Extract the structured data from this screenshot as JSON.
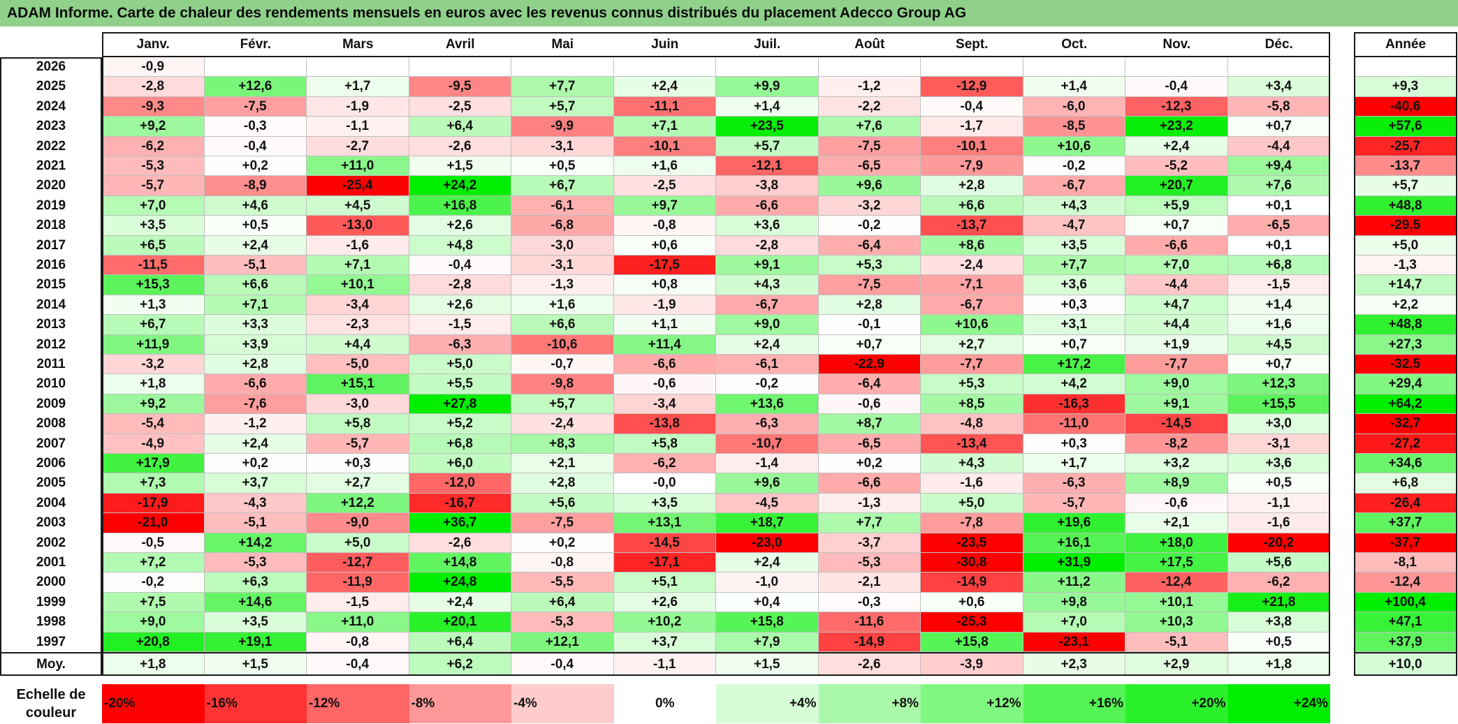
{
  "title": "ADAM Informe. Carte de chaleur des rendements mensuels en euros avec les revenus connus distribués du placement Adecco Group AG",
  "chart_data": {
    "type": "heatmap",
    "months": [
      "Janv.",
      "Févr.",
      "Mars",
      "Avril",
      "Mai",
      "Juin",
      "Juil.",
      "Août",
      "Sept.",
      "Oct.",
      "Nov.",
      "Déc."
    ],
    "annual_header": "Année",
    "years": [
      "2026",
      "2025",
      "2024",
      "2023",
      "2022",
      "2021",
      "2020",
      "2019",
      "2018",
      "2017",
      "2016",
      "2015",
      "2014",
      "2013",
      "2012",
      "2011",
      "2010",
      "2009",
      "2008",
      "2007",
      "2006",
      "2005",
      "2004",
      "2003",
      "2002",
      "2001",
      "2000",
      "1999",
      "1998",
      "1997"
    ],
    "values": [
      [
        "-0,9",
        "",
        "",
        "",
        "",
        "",
        "",
        "",
        "",
        "",
        "",
        ""
      ],
      [
        "-2,8",
        "+12,6",
        "+1,7",
        "-9,5",
        "+7,7",
        "+2,4",
        "+9,9",
        "-1,2",
        "-12,9",
        "+1,4",
        "-0,4",
        "+3,4"
      ],
      [
        "-9,3",
        "-7,5",
        "-1,9",
        "-2,5",
        "+5,7",
        "-11,1",
        "+1,4",
        "-2,2",
        "-0,4",
        "-6,0",
        "-12,3",
        "-5,8"
      ],
      [
        "+9,2",
        "-0,3",
        "-1,1",
        "+6,4",
        "-9,9",
        "+7,1",
        "+23,5",
        "+7,6",
        "-1,7",
        "-8,5",
        "+23,2",
        "+0,7"
      ],
      [
        "-6,2",
        "-0,4",
        "-2,7",
        "-2,6",
        "-3,1",
        "-10,1",
        "+5,7",
        "-7,5",
        "-10,1",
        "+10,6",
        "+2,4",
        "-4,4"
      ],
      [
        "-5,3",
        "+0,2",
        "+11,0",
        "+1,5",
        "+0,5",
        "+1,6",
        "-12,1",
        "-6,5",
        "-7,9",
        "-0,2",
        "-5,2",
        "+9,4"
      ],
      [
        "-5,7",
        "-8,9",
        "-25,4",
        "+24,2",
        "+6,7",
        "-2,5",
        "-3,8",
        "+9,6",
        "+2,8",
        "-6,7",
        "+20,7",
        "+7,6"
      ],
      [
        "+7,0",
        "+4,6",
        "+4,5",
        "+16,8",
        "-6,1",
        "+9,7",
        "-6,6",
        "-3,2",
        "+6,6",
        "+4,3",
        "+5,9",
        "+0,1"
      ],
      [
        "+3,5",
        "+0,5",
        "-13,0",
        "+2,6",
        "-6,8",
        "-0,8",
        "+3,6",
        "-0,2",
        "-13,7",
        "-4,7",
        "+0,7",
        "-6,5"
      ],
      [
        "+6,5",
        "+2,4",
        "-1,6",
        "+4,8",
        "-3,0",
        "+0,6",
        "-2,8",
        "-6,4",
        "+8,6",
        "+3,5",
        "-6,6",
        "+0,1"
      ],
      [
        "-11,5",
        "-5,1",
        "+7,1",
        "-0,4",
        "-3,1",
        "-17,5",
        "+9,1",
        "+5,3",
        "-2,4",
        "+7,7",
        "+7,0",
        "+6,8"
      ],
      [
        "+15,3",
        "+6,6",
        "+10,1",
        "-2,8",
        "-1,3",
        "+0,8",
        "+4,3",
        "-7,5",
        "-7,1",
        "+3,6",
        "-4,4",
        "-1,5"
      ],
      [
        "+1,3",
        "+7,1",
        "-3,4",
        "+2,6",
        "+1,6",
        "-1,9",
        "-6,7",
        "+2,8",
        "-6,7",
        "+0,3",
        "+4,7",
        "+1,4"
      ],
      [
        "+6,7",
        "+3,3",
        "-2,3",
        "-1,5",
        "+6,6",
        "+1,1",
        "+9,0",
        "-0,1",
        "+10,6",
        "+3,1",
        "+4,4",
        "+1,6"
      ],
      [
        "+11,9",
        "+3,9",
        "+4,4",
        "-6,3",
        "-10,6",
        "+11,4",
        "+2,4",
        "+0,7",
        "+2,7",
        "+0,7",
        "+1,9",
        "+4,5"
      ],
      [
        "-3,2",
        "+2,8",
        "-5,0",
        "+5,0",
        "-0,7",
        "-6,6",
        "-6,1",
        "-22,9",
        "-7,7",
        "+17,2",
        "-7,7",
        "+0,7"
      ],
      [
        "+1,8",
        "-6,6",
        "+15,1",
        "+5,5",
        "-9,8",
        "-0,6",
        "-0,2",
        "-6,4",
        "+5,3",
        "+4,2",
        "+9,0",
        "+12,3"
      ],
      [
        "+9,2",
        "-7,6",
        "-3,0",
        "+27,8",
        "+5,7",
        "-3,4",
        "+13,6",
        "-0,6",
        "+8,5",
        "-16,3",
        "+9,1",
        "+15,5"
      ],
      [
        "-5,4",
        "-1,2",
        "+5,8",
        "+5,2",
        "-2,4",
        "-13,8",
        "-6,3",
        "+8,7",
        "-4,8",
        "-11,0",
        "-14,5",
        "+3,0"
      ],
      [
        "-4,9",
        "+2,4",
        "-5,7",
        "+6,8",
        "+8,3",
        "+5,8",
        "-10,7",
        "-6,5",
        "-13,4",
        "+0,3",
        "-8,2",
        "-3,1"
      ],
      [
        "+17,9",
        "+0,2",
        "+0,3",
        "+6,0",
        "+2,1",
        "-6,2",
        "-1,4",
        "+0,2",
        "+4,3",
        "+1,7",
        "+3,2",
        "+3,6"
      ],
      [
        "+7,3",
        "+3,7",
        "+2,7",
        "-12,0",
        "+2,8",
        "-0,0",
        "+9,6",
        "-6,6",
        "-1,6",
        "-6,3",
        "+8,9",
        "+0,5"
      ],
      [
        "-17,9",
        "-4,3",
        "+12,2",
        "-16,7",
        "+5,6",
        "+3,5",
        "-4,5",
        "-1,3",
        "+5,0",
        "-5,7",
        "-0,6",
        "-1,1"
      ],
      [
        "-21,0",
        "-5,1",
        "-9,0",
        "+36,7",
        "-7,5",
        "+13,1",
        "+18,7",
        "+7,7",
        "-7,8",
        "+19,6",
        "+2,1",
        "-1,6"
      ],
      [
        "-0,5",
        "+14,2",
        "+5,0",
        "-2,6",
        "+0,2",
        "-14,5",
        "-23,0",
        "-3,7",
        "-23,5",
        "+16,1",
        "+18,0",
        "-20,2"
      ],
      [
        "+7,2",
        "-5,3",
        "-12,7",
        "+14,8",
        "-0,8",
        "-17,1",
        "+2,4",
        "-5,3",
        "-30,8",
        "+31,9",
        "+17,5",
        "+5,6"
      ],
      [
        "-0,2",
        "+6,3",
        "-11,9",
        "+24,8",
        "-5,5",
        "+5,1",
        "-1,0",
        "-2,1",
        "-14,9",
        "+11,2",
        "-12,4",
        "-6,2"
      ],
      [
        "+7,5",
        "+14,6",
        "-1,5",
        "+2,4",
        "+6,4",
        "+2,6",
        "+0,4",
        "-0,3",
        "+0,6",
        "+9,8",
        "+10,1",
        "+21,8"
      ],
      [
        "+9,0",
        "+3,5",
        "+11,0",
        "+20,1",
        "-5,3",
        "+10,2",
        "+15,8",
        "-11,6",
        "-25,3",
        "+7,0",
        "+10,3",
        "+3,8"
      ],
      [
        "+20,8",
        "+19,1",
        "-0,8",
        "+6,4",
        "+12,1",
        "+3,7",
        "+7,9",
        "-14,9",
        "+15,8",
        "-23,1",
        "-5,1",
        "+0,5"
      ]
    ],
    "annual": [
      "",
      "+9,3",
      "-40,6",
      "+57,6",
      "-25,7",
      "-13,7",
      "+5,7",
      "+48,8",
      "-29,5",
      "+5,0",
      "-1,3",
      "+14,7",
      "+2,2",
      "+48,8",
      "+27,3",
      "-32,5",
      "+29,4",
      "+64,2",
      "-32,7",
      "-27,2",
      "+34,6",
      "+6,8",
      "-26,4",
      "+37,7",
      "-37,7",
      "-8,1",
      "-12,4",
      "+100,4",
      "+47,1",
      "+37,9"
    ],
    "average_label": "Moy.",
    "average": [
      "+1,8",
      "+1,5",
      "-0,4",
      "+6,2",
      "-0,4",
      "-1,1",
      "+1,5",
      "-2,6",
      "-3,9",
      "+2,3",
      "+2,9",
      "+1,8"
    ],
    "average_annual": "+10,0",
    "legend": {
      "title": "Echelle de couleur",
      "steps": [
        {
          "label": "-20%",
          "value": -20
        },
        {
          "label": "-16%",
          "value": -16
        },
        {
          "label": "-12%",
          "value": -12
        },
        {
          "label": "-8%",
          "value": -8
        },
        {
          "label": "-4%",
          "value": -4
        },
        {
          "label": "0%",
          "value": 0
        },
        {
          "label": "+4%",
          "value": 4
        },
        {
          "label": "+8%",
          "value": 8
        },
        {
          "label": "+12%",
          "value": 12
        },
        {
          "label": "+16%",
          "value": 16
        },
        {
          "label": "+20%",
          "value": 20
        },
        {
          "label": "+24%",
          "value": 24
        }
      ]
    },
    "colors": {
      "negative": "#ff0000",
      "neutral": "#ffffff",
      "positive": "#00ee00",
      "title_bar": "#8fd18a"
    }
  }
}
